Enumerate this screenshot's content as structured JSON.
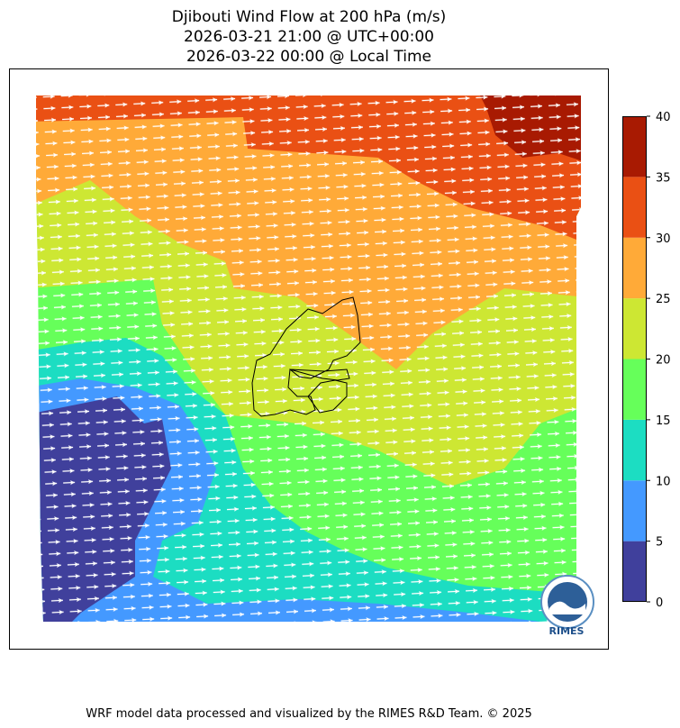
{
  "title": [
    "Djibouti Wind Flow at 200 hPa (m/s)",
    "2026-03-21 21:00 @ UTC+00:00",
    "2026-03-22 00:00 @ Local Time"
  ],
  "colorbar": {
    "lim": [
      0,
      40
    ],
    "ticks": [
      0,
      5,
      10,
      15,
      20,
      25,
      30,
      35,
      40
    ],
    "colors": [
      "#40409c",
      "#4499ff",
      "#1cddc2",
      "#66ff5a",
      "#cde733",
      "#ffaa38",
      "#ea5014",
      "#a81a02"
    ]
  },
  "logo": "RIMES",
  "footer": "WRF model data processed and visualized by the RIMES R&D Team. © 2025"
}
